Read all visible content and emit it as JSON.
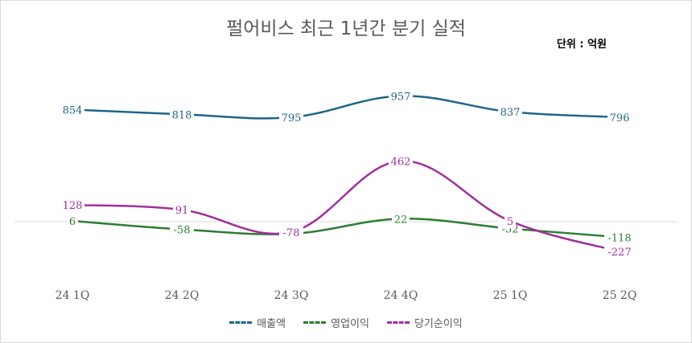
{
  "chart_data": {
    "type": "line",
    "title": "펄어비스 최근 1년간 분기 실적",
    "unit_label": "단위 : 억원",
    "categories": [
      "24 1Q",
      "24 2Q",
      "24 3Q",
      "24 4Q",
      "25 1Q",
      "25 2Q"
    ],
    "series": [
      {
        "name": "매출액",
        "color": "#1f6587",
        "values": [
          854,
          818,
          795,
          957,
          837,
          796
        ]
      },
      {
        "name": "영업이익",
        "color": "#2e7d32",
        "values": [
          6,
          -58,
          -92,
          22,
          -52,
          -118
        ]
      },
      {
        "name": "당기순이익",
        "color": "#a12f9c",
        "values": [
          128,
          91,
          -78,
          462,
          5,
          -227
        ]
      }
    ],
    "xlabel": "",
    "ylabel": "",
    "ylim": [
      -400,
      1100
    ],
    "grid": false,
    "legend_position": "bottom"
  }
}
